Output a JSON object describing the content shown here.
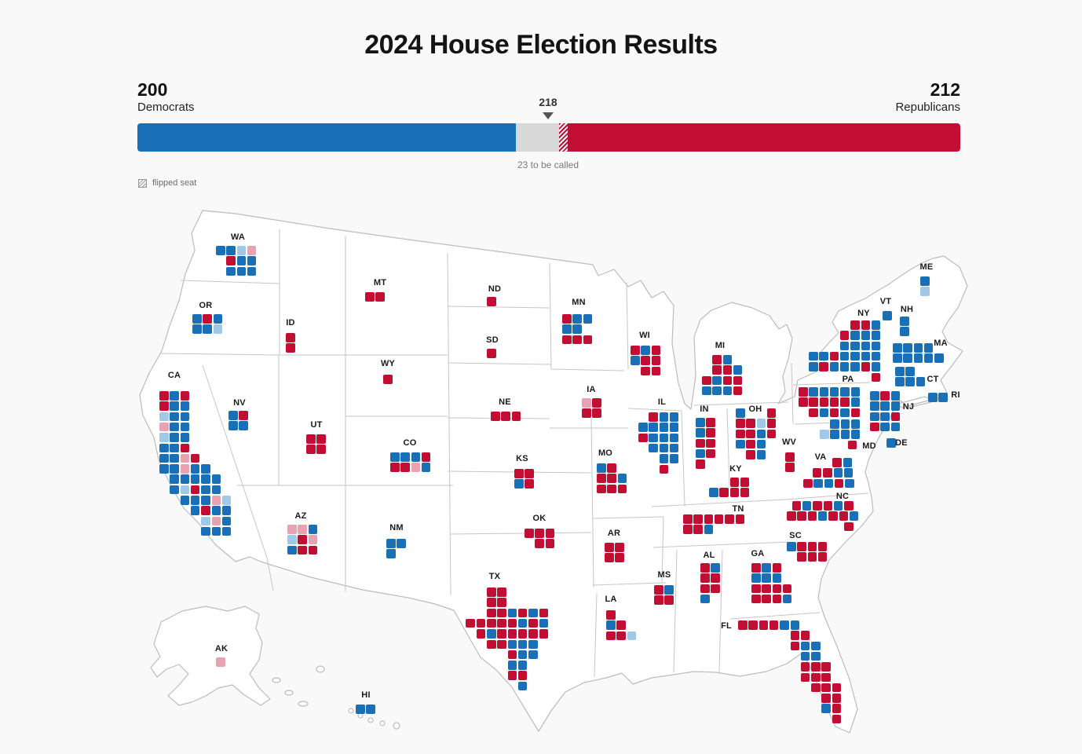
{
  "title": "2024 House Election Results",
  "bar": {
    "dem_count": "200",
    "dem_label": "Democrats",
    "rep_count": "212",
    "rep_label": "Republicans",
    "majority_label": "218",
    "uncalled_note": "23 to be called",
    "flipped_legend": "flipped seat",
    "dem_seats": 200,
    "rep_seats": 212,
    "uncalled_seats": 23,
    "majority": 218,
    "total_seats": 435
  },
  "colors": {
    "dem": "#1a70b7",
    "rep": "#c30e34",
    "dem_lead_uncalled": "#a0c8e8",
    "rep_lead_uncalled": "#e8a2b2",
    "uncalled_bar_gray": "#d8d8d8",
    "map_fill": "#ffffff",
    "map_stroke": "#bcbcbc",
    "background": "#f9f9f9"
  },
  "cell_legend": {
    "B": "democrat-seat",
    "R": "republican-seat",
    "L": "democrat-leading-uncalled",
    "P": "republican-leading-uncalled"
  },
  "states": [
    {
      "abbr": "WA",
      "label": [
        303,
        302
      ],
      "grid": [
        275,
        313
      ],
      "rows": [
        [
          0,
          "BBLP"
        ],
        [
          1,
          "RBB"
        ],
        [
          1,
          "BBB"
        ]
      ]
    },
    {
      "abbr": "OR",
      "label": [
        262,
        389
      ],
      "grid": [
        245,
        400
      ],
      "rows": [
        [
          0,
          "BRB"
        ],
        [
          0,
          "BBL"
        ]
      ]
    },
    {
      "abbr": "CA",
      "label": [
        222,
        478
      ],
      "grid": [
        203,
        498
      ],
      "rows": [
        [
          0,
          "RBR"
        ],
        [
          0,
          "RBB"
        ],
        [
          0,
          "LBB"
        ],
        [
          0,
          "PBB"
        ],
        [
          0,
          "LBB"
        ],
        [
          0,
          "BBR"
        ],
        [
          0,
          "BBPR"
        ],
        [
          0,
          "BBPBB"
        ],
        [
          1,
          "BBBBB"
        ],
        [
          1,
          "BLRBB"
        ],
        [
          2,
          "BBBPL"
        ],
        [
          3,
          "BRBB"
        ],
        [
          4,
          "LPB"
        ],
        [
          4,
          "BBB"
        ]
      ]
    },
    {
      "abbr": "NV",
      "label": [
        305,
        513
      ],
      "grid": [
        291,
        523
      ],
      "rows": [
        [
          0,
          "BR"
        ],
        [
          0,
          "BB"
        ]
      ]
    },
    {
      "abbr": "UT",
      "label": [
        403,
        541
      ],
      "grid": [
        390,
        553
      ],
      "rows": [
        [
          0,
          "RR"
        ],
        [
          0,
          "RR"
        ]
      ]
    },
    {
      "abbr": "AZ",
      "label": [
        383,
        657
      ],
      "grid": [
        366,
        668
      ],
      "rows": [
        [
          0,
          "PPB"
        ],
        [
          0,
          "LRP"
        ],
        [
          0,
          "BRR"
        ]
      ]
    },
    {
      "abbr": "ID",
      "label": [
        370,
        411
      ],
      "grid": [
        364,
        424
      ],
      "rows": [
        [
          0,
          "R"
        ],
        [
          0,
          "R"
        ]
      ]
    },
    {
      "abbr": "MT",
      "label": [
        484,
        360
      ],
      "grid": [
        465,
        372
      ],
      "rows": [
        [
          0,
          "RR"
        ]
      ]
    },
    {
      "abbr": "WY",
      "label": [
        494,
        463
      ],
      "grid": [
        488,
        477
      ],
      "rows": [
        [
          0,
          "R"
        ]
      ]
    },
    {
      "abbr": "NM",
      "label": [
        505,
        672
      ],
      "grid": [
        492,
        686
      ],
      "rows": [
        [
          0,
          "BB"
        ],
        [
          0,
          "B"
        ]
      ]
    },
    {
      "abbr": "CO",
      "label": [
        522,
        564
      ],
      "grid": [
        497,
        576
      ],
      "rows": [
        [
          0,
          "BBBR"
        ],
        [
          0,
          "RRPB"
        ]
      ]
    },
    {
      "abbr": "ND",
      "label": [
        630,
        368
      ],
      "grid": [
        620,
        378
      ],
      "rows": [
        [
          0,
          "R"
        ]
      ]
    },
    {
      "abbr": "SD",
      "label": [
        627,
        433
      ],
      "grid": [
        620,
        444
      ],
      "rows": [
        [
          0,
          "R"
        ]
      ]
    },
    {
      "abbr": "NE",
      "label": [
        643,
        512
      ],
      "grid": [
        625,
        524
      ],
      "rows": [
        [
          0,
          "RRR"
        ]
      ]
    },
    {
      "abbr": "KS",
      "label": [
        665,
        584
      ],
      "grid": [
        655,
        597
      ],
      "rows": [
        [
          0,
          "RR"
        ],
        [
          0,
          "BR"
        ]
      ]
    },
    {
      "abbr": "OK",
      "label": [
        687,
        660
      ],
      "grid": [
        668,
        673
      ],
      "rows": [
        [
          0,
          "RRR"
        ],
        [
          1,
          "RR"
        ]
      ]
    },
    {
      "abbr": "TX",
      "label": [
        630,
        734
      ],
      "grid": [
        620,
        748
      ],
      "rows": [
        [
          0,
          "RR"
        ],
        [
          0,
          "RR"
        ],
        [
          0,
          "RRBRBR"
        ],
        [
          -2,
          "RRRRRBRB"
        ],
        [
          -1,
          "RBRRRRR"
        ],
        [
          0,
          "RRBBB"
        ],
        [
          2,
          "RBB"
        ],
        [
          2,
          "BB"
        ],
        [
          2,
          "RR"
        ],
        [
          3,
          "B"
        ]
      ]
    },
    {
      "abbr": "MN",
      "label": [
        737,
        385
      ],
      "grid": [
        716,
        400
      ],
      "rows": [
        [
          0,
          "RBB"
        ],
        [
          0,
          "BB"
        ],
        [
          0,
          "RRR"
        ]
      ]
    },
    {
      "abbr": "IA",
      "label": [
        753,
        496
      ],
      "grid": [
        741,
        507
      ],
      "rows": [
        [
          0,
          "PR"
        ],
        [
          0,
          "RR"
        ]
      ]
    },
    {
      "abbr": "MO",
      "label": [
        771,
        577
      ],
      "grid": [
        760,
        590
      ],
      "rows": [
        [
          0,
          "BR"
        ],
        [
          0,
          "RRB"
        ],
        [
          0,
          "RRR"
        ]
      ]
    },
    {
      "abbr": "AR",
      "label": [
        782,
        679
      ],
      "grid": [
        770,
        691
      ],
      "rows": [
        [
          0,
          "RR"
        ],
        [
          0,
          "RR"
        ]
      ]
    },
    {
      "abbr": "LA",
      "label": [
        778,
        763
      ],
      "grid": [
        772,
        777
      ],
      "rows": [
        [
          0,
          "R"
        ],
        [
          0,
          "BR"
        ],
        [
          0,
          "RRL"
        ]
      ]
    },
    {
      "abbr": "WI",
      "label": [
        821,
        427
      ],
      "grid": [
        803,
        440
      ],
      "rows": [
        [
          0,
          "RBR"
        ],
        [
          0,
          "BRR"
        ],
        [
          1,
          "RR"
        ]
      ]
    },
    {
      "abbr": "IL",
      "label": [
        843,
        512
      ],
      "grid": [
        813,
        525
      ],
      "rows": [
        [
          1,
          "RBB"
        ],
        [
          0,
          "BBBB"
        ],
        [
          0,
          "RBBB"
        ],
        [
          1,
          "BBB"
        ],
        [
          2,
          "BB"
        ],
        [
          2,
          "R"
        ]
      ]
    },
    {
      "abbr": "MS",
      "label": [
        846,
        732
      ],
      "grid": [
        833,
        745
      ],
      "rows": [
        [
          0,
          "RB"
        ],
        [
          0,
          "RR"
        ]
      ]
    },
    {
      "abbr": "MI",
      "label": [
        917,
        440
      ],
      "grid": [
        894,
        452
      ],
      "rows": [
        [
          1,
          "RB"
        ],
        [
          1,
          "RRB"
        ],
        [
          0,
          "RBRR"
        ],
        [
          0,
          "BBBR"
        ]
      ]
    },
    {
      "abbr": "IN",
      "label": [
        897,
        521
      ],
      "grid": [
        886,
        532
      ],
      "rows": [
        [
          0,
          "BR"
        ],
        [
          0,
          "BR"
        ],
        [
          0,
          "RR"
        ],
        [
          0,
          "BR"
        ],
        [
          0,
          "R"
        ]
      ]
    },
    {
      "abbr": "OH",
      "label": [
        962,
        521
      ],
      "grid": [
        937,
        520
      ],
      "rows": [
        [
          0,
          "B..R"
        ],
        [
          0,
          "RRLR"
        ],
        [
          0,
          "RRBR"
        ],
        [
          0,
          "BRB"
        ],
        [
          1,
          "RB"
        ]
      ]
    },
    {
      "abbr": "KY",
      "label": [
        937,
        597
      ],
      "grid": [
        903,
        608
      ],
      "rows": [
        [
          2,
          "RR"
        ],
        [
          0,
          "BRRR"
        ]
      ]
    },
    {
      "abbr": "TN",
      "label": [
        940,
        648
      ],
      "grid": [
        870,
        655
      ],
      "rows": [
        [
          0,
          "RRRRRR"
        ],
        [
          0,
          "RRB"
        ]
      ]
    },
    {
      "abbr": "WV",
      "label": [
        1005,
        563
      ],
      "grid": [
        1000,
        576
      ],
      "rows": [
        [
          0,
          "R"
        ],
        [
          0,
          "R"
        ]
      ]
    },
    {
      "abbr": "VA",
      "label": [
        1045,
        582
      ],
      "grid": [
        1023,
        583
      ],
      "rows": [
        [
          2.8,
          "RB"
        ],
        [
          0.9,
          "RRBB"
        ],
        [
          0,
          "RBBRB"
        ]
      ]
    },
    {
      "abbr": "NC",
      "label": [
        1073,
        632
      ],
      "grid": [
        1002,
        638
      ],
      "rows": [
        [
          0.5,
          "RBRRBR"
        ],
        [
          0,
          "RRRBRRB"
        ],
        [
          5.5,
          "R"
        ]
      ]
    },
    {
      "abbr": "SC",
      "label": [
        1013,
        682
      ],
      "grid": [
        1002,
        690
      ],
      "rows": [
        [
          0,
          "BRRR"
        ],
        [
          1,
          "RRR"
        ]
      ]
    },
    {
      "abbr": "GA",
      "label": [
        965,
        705
      ],
      "grid": [
        957,
        717
      ],
      "rows": [
        [
          0,
          "RBR"
        ],
        [
          0,
          "BBB"
        ],
        [
          0,
          "RRRR"
        ],
        [
          0,
          "RRRB"
        ]
      ]
    },
    {
      "abbr": "AL",
      "label": [
        903,
        707
      ],
      "grid": [
        892,
        717
      ],
      "rows": [
        [
          0,
          "RB"
        ],
        [
          0,
          "RR"
        ],
        [
          0,
          "RR"
        ],
        [
          0,
          "B"
        ]
      ]
    },
    {
      "abbr": "FL",
      "label": [
        925,
        797
      ],
      "grid": [
        940,
        790
      ],
      "rows": [
        [
          0,
          "RRRRBB"
        ],
        [
          5,
          "RR"
        ],
        [
          5,
          "RBB"
        ],
        [
          6,
          "BB"
        ],
        [
          6,
          "RRR"
        ],
        [
          6,
          "RRR"
        ],
        [
          7,
          "RRR"
        ],
        [
          8,
          "RR"
        ],
        [
          8,
          "BR"
        ],
        [
          9,
          "R"
        ]
      ]
    },
    {
      "abbr": "PA",
      "label": [
        1080,
        483
      ],
      "grid": [
        1017,
        493
      ],
      "rows": [
        [
          0,
          "RBBBBB"
        ],
        [
          0,
          "RRRRRB"
        ],
        [
          1,
          "RBRBR"
        ]
      ]
    },
    {
      "abbr": "NY",
      "label": [
        1100,
        399
      ],
      "grid": [
        1030,
        408
      ],
      "rows": [
        [
          4,
          "RRB"
        ],
        [
          3,
          "RBBB"
        ],
        [
          3,
          "BBBB"
        ],
        [
          0,
          "BBRBBBB"
        ],
        [
          0,
          "BRBBBRB"
        ],
        [
          6,
          "R"
        ]
      ]
    },
    {
      "abbr": "NJ",
      "label": [
        1157,
        518
      ],
      "grid": [
        1108,
        498
      ],
      "rows": [
        [
          0,
          "BRB"
        ],
        [
          0,
          "BBB"
        ],
        [
          0,
          "BBR"
        ],
        [
          0,
          "RBB"
        ]
      ]
    },
    {
      "abbr": "MD",
      "label": [
        1107,
        568
      ],
      "grid": [
        1044,
        534
      ],
      "rows": [
        [
          1,
          "BBB"
        ],
        [
          0,
          "LBBB"
        ],
        [
          2.7,
          "R"
        ]
      ]
    },
    {
      "abbr": "DE",
      "label": [
        1148,
        564
      ],
      "grid": [
        1129,
        558
      ],
      "rows": [
        [
          0,
          "B"
        ]
      ]
    },
    {
      "abbr": "CT",
      "label": [
        1188,
        483
      ],
      "grid": [
        1140,
        467
      ],
      "rows": [
        [
          0,
          "BB"
        ],
        [
          0,
          "BBB"
        ]
      ]
    },
    {
      "abbr": "RI",
      "label": [
        1217,
        503
      ],
      "grid": [
        1182,
        500
      ],
      "rows": [
        [
          0,
          "BB"
        ]
      ]
    },
    {
      "abbr": "MA",
      "label": [
        1198,
        437
      ],
      "grid": [
        1137,
        437
      ],
      "rows": [
        [
          0,
          "BBBB"
        ],
        [
          0,
          "BBBBB"
        ]
      ]
    },
    {
      "abbr": "VT",
      "label": [
        1128,
        384
      ],
      "grid": [
        1124,
        396
      ],
      "rows": [
        [
          0,
          "B"
        ]
      ]
    },
    {
      "abbr": "NH",
      "label": [
        1155,
        394
      ],
      "grid": [
        1146,
        403
      ],
      "rows": [
        [
          0,
          "B"
        ],
        [
          0,
          "B"
        ]
      ]
    },
    {
      "abbr": "ME",
      "label": [
        1180,
        340
      ],
      "grid": [
        1172,
        352
      ],
      "rows": [
        [
          0,
          "B"
        ],
        [
          0,
          "L"
        ]
      ]
    },
    {
      "abbr": "AK",
      "label": [
        282,
        826
      ],
      "grid": [
        275,
        837
      ],
      "rows": [
        [
          0,
          "P"
        ]
      ]
    },
    {
      "abbr": "HI",
      "label": [
        466,
        885
      ],
      "grid": [
        453,
        897
      ],
      "rows": [
        [
          0,
          "BB"
        ]
      ]
    }
  ]
}
